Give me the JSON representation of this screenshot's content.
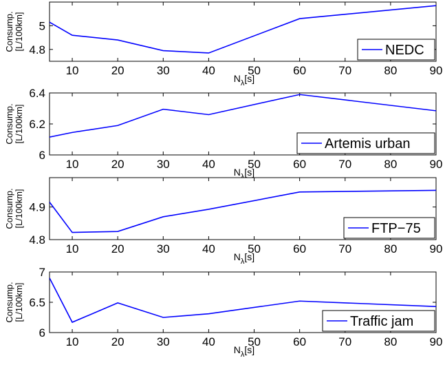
{
  "chart_data": [
    {
      "type": "line",
      "x": [
        5,
        10,
        20,
        30,
        40,
        60,
        90
      ],
      "series": [
        {
          "name": "NEDC",
          "values": [
            5.03,
            4.92,
            4.88,
            4.79,
            4.77,
            5.06,
            5.17
          ]
        }
      ],
      "xlabel": "N_λ[s]",
      "ylabel": [
        "Consump.",
        "[L/100km]"
      ],
      "xlim": [
        5,
        90
      ],
      "ylim": [
        4.7,
        5.2
      ],
      "xticks": [
        10,
        20,
        30,
        40,
        50,
        60,
        70,
        80,
        90
      ],
      "yticks": [
        4.8,
        5
      ],
      "ytick_labels": [
        "4.8",
        "5"
      ],
      "legend": "bottom-right",
      "grid": false,
      "color": "#0000ff"
    },
    {
      "type": "line",
      "x": [
        5,
        10,
        20,
        30,
        40,
        60,
        90
      ],
      "series": [
        {
          "name": "Artemis urban",
          "values": [
            6.115,
            6.145,
            6.19,
            6.295,
            6.26,
            6.39,
            6.285
          ]
        }
      ],
      "xlabel": "N_λ[s]",
      "ylabel": [
        "Consump.",
        "[L/100km]"
      ],
      "xlim": [
        5,
        90
      ],
      "ylim": [
        6.0,
        6.4
      ],
      "xticks": [
        10,
        20,
        30,
        40,
        50,
        60,
        70,
        80,
        90
      ],
      "yticks": [
        6,
        6.2,
        6.4
      ],
      "ytick_labels": [
        "6",
        "6.2",
        "6.4"
      ],
      "legend": "bottom-right",
      "grid": false,
      "color": "#0000ff"
    },
    {
      "type": "line",
      "x": [
        5,
        10,
        20,
        30,
        40,
        60,
        90
      ],
      "series": [
        {
          "name": "FTP−75",
          "values": [
            4.915,
            4.822,
            4.825,
            4.87,
            4.893,
            4.946,
            4.951
          ]
        }
      ],
      "xlabel": "N_λ[s]",
      "ylabel": [
        "Consump.",
        "[L/100km]"
      ],
      "xlim": [
        5,
        90
      ],
      "ylim": [
        4.8,
        4.99
      ],
      "xticks": [
        10,
        20,
        30,
        40,
        50,
        60,
        70,
        80,
        90
      ],
      "yticks": [
        4.8,
        4.9
      ],
      "ytick_labels": [
        "4.8",
        "4.9"
      ],
      "legend": "bottom-right",
      "grid": false,
      "color": "#0000ff"
    },
    {
      "type": "line",
      "x": [
        5,
        10,
        20,
        30,
        40,
        60,
        90
      ],
      "series": [
        {
          "name": "Traffic jam",
          "values": [
            6.9,
            6.17,
            6.49,
            6.25,
            6.31,
            6.52,
            6.43
          ]
        }
      ],
      "xlabel": "N_λ[s]",
      "ylabel": [
        "Consump.",
        "[L/100km]"
      ],
      "xlim": [
        5,
        90
      ],
      "ylim": [
        6.0,
        7.0
      ],
      "xticks": [
        10,
        20,
        30,
        40,
        50,
        60,
        70,
        80,
        90
      ],
      "yticks": [
        6,
        6.5,
        7
      ],
      "ytick_labels": [
        "6",
        "6.5",
        "7"
      ],
      "legend": "bottom-right",
      "grid": false,
      "color": "#0000ff"
    }
  ]
}
